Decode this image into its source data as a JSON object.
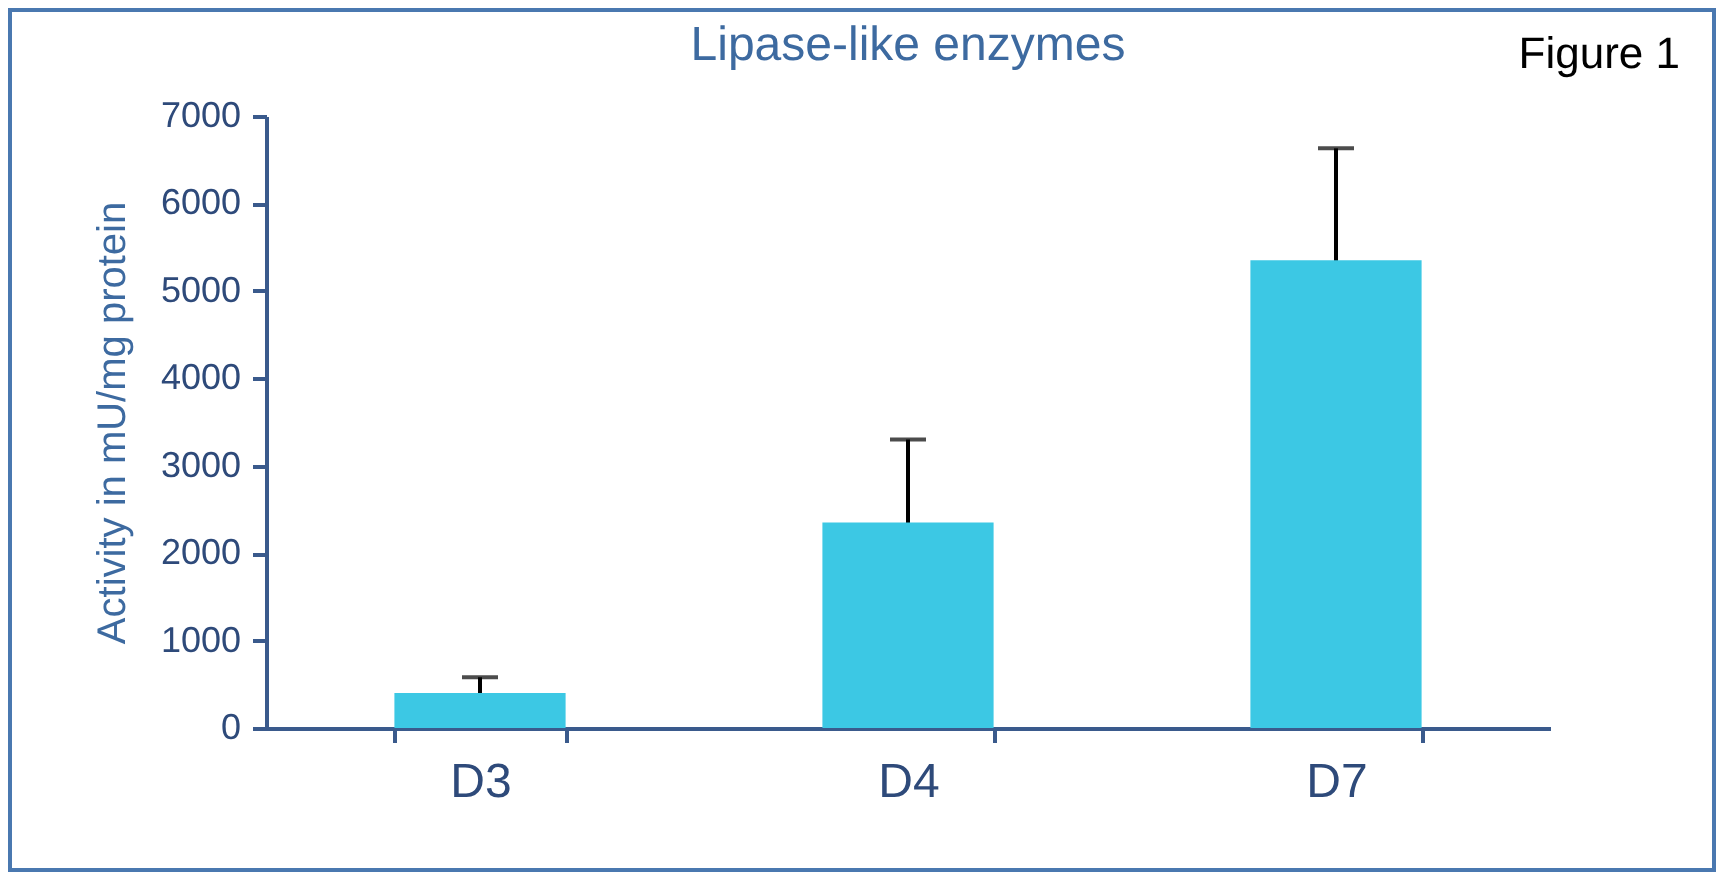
{
  "chart_data": {
    "type": "bar",
    "title": "Lipase-like enzymes",
    "ylabel": "Activity in mU/mg protein",
    "annotations": [
      "Figure 1"
    ],
    "categories": [
      "D3",
      "D4",
      "D7"
    ],
    "values": [
      400,
      2350,
      5350
    ],
    "errors": [
      180,
      950,
      1280
    ],
    "color": "#3cc8e4",
    "ylim": [
      0,
      7000
    ],
    "yticks": [
      0,
      1000,
      2000,
      3000,
      4000,
      5000,
      6000,
      7000
    ]
  }
}
